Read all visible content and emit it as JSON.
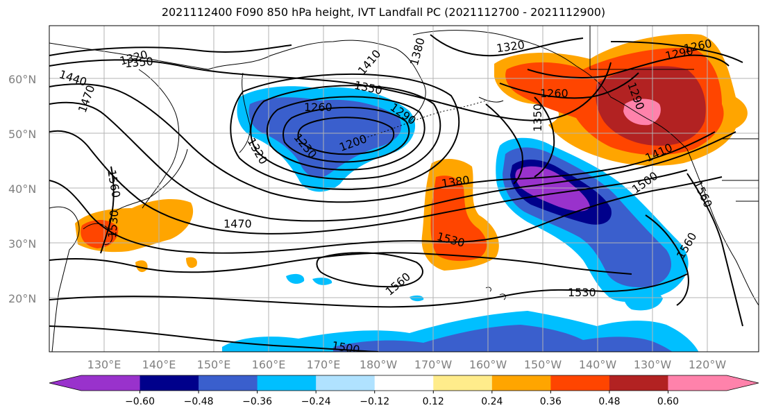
{
  "title": "2021112400 F090 850 hPa height, IVT Landfall PC (2021112700 - 2021112900)",
  "map": {
    "lat_ticks": [
      "60°N",
      "50°N",
      "40°N",
      "30°N",
      "20°N"
    ],
    "lon_ticks": [
      "130°E",
      "140°E",
      "150°E",
      "160°E",
      "170°E",
      "180°W",
      "170°W",
      "160°W",
      "150°W",
      "140°W",
      "130°W",
      "120°W"
    ],
    "contour_labels": [
      "1320",
      "1350",
      "1440",
      "1470",
      "1410",
      "1380",
      "1260",
      "1350",
      "1290",
      "1200",
      "1230",
      "1320",
      "1560",
      "1470",
      "1380",
      "1530",
      "1560",
      "1530",
      "1350",
      "1320",
      "1290",
      "1260",
      "1260",
      "1290",
      "1410",
      "1500",
      "1560",
      "1560",
      "1530",
      "1500"
    ]
  },
  "colorbar": {
    "ticks": [
      "−0.60",
      "−0.48",
      "−0.36",
      "−0.24",
      "−0.12",
      "0.12",
      "0.24",
      "0.36",
      "0.48",
      "0.60"
    ],
    "colors": [
      "#9932cc",
      "#00008b",
      "#3a5fcd",
      "#00bfff",
      "#b0e2ff",
      "#ffffff",
      "#ffec8b",
      "#ffa500",
      "#ff4500",
      "#b22222",
      "#ff82ab"
    ]
  }
}
